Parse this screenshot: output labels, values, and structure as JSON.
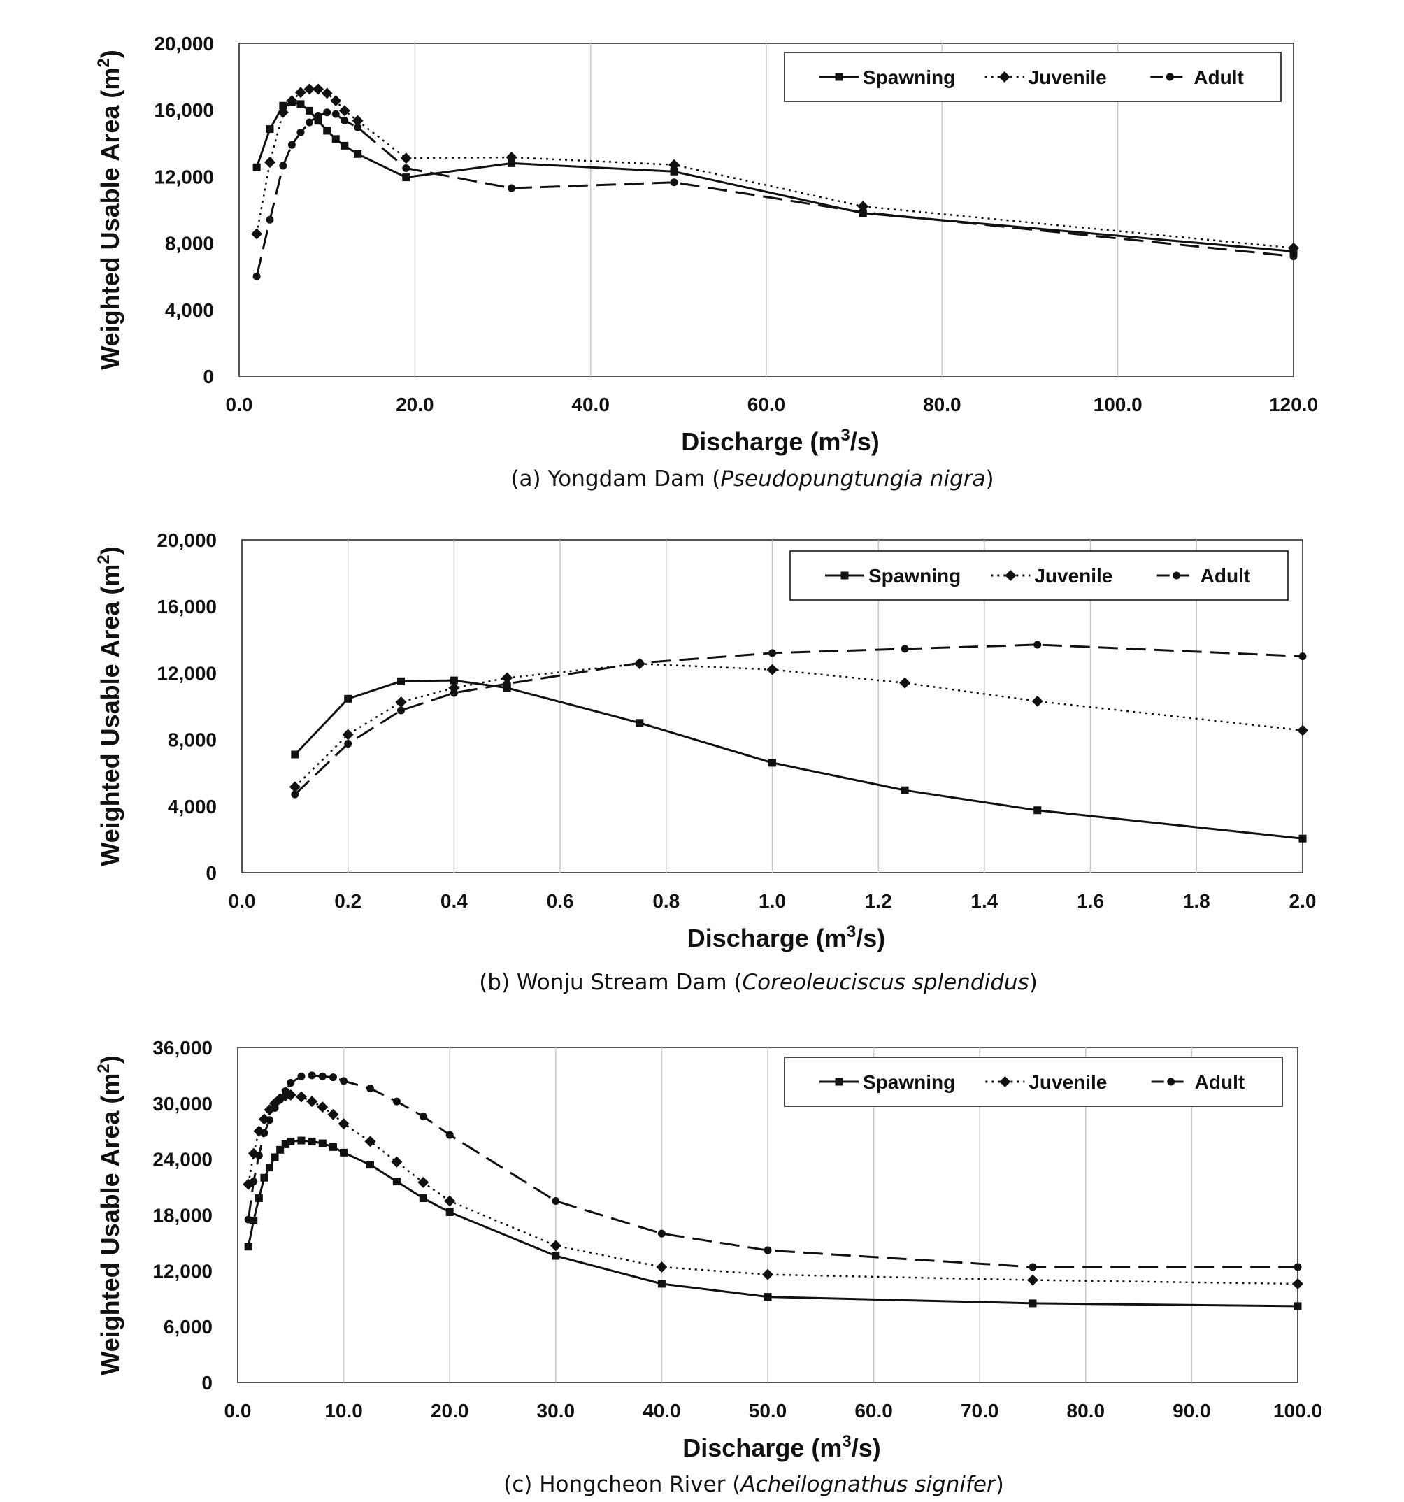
{
  "chart_data": [
    {
      "type": "line",
      "caption_prefix": "(a) Yongdam Dam (",
      "caption_species": "Pseudopungtungia nigra",
      "caption_suffix": ")",
      "xlabel": "Discharge (m3/s)",
      "ylabel": "Weighted Usable Area (m2)",
      "xlim": [
        0,
        120
      ],
      "ylim": [
        0,
        20000
      ],
      "xticks": [
        0,
        20,
        40,
        60,
        80,
        100,
        120
      ],
      "xtick_labels": [
        "0.0",
        "20.0",
        "40.0",
        "60.0",
        "80.0",
        "100.0",
        "120.0"
      ],
      "yticks": [
        0,
        4000,
        8000,
        12000,
        16000,
        20000
      ],
      "ytick_labels": [
        "0",
        "4,000",
        "8,000",
        "12,000",
        "16,000",
        "20,000"
      ],
      "grid": "vertical",
      "legend_position": "top-right",
      "series": [
        {
          "name": "Spawning",
          "marker": "square",
          "dash": "solid",
          "x": [
            2,
            3.5,
            5,
            6,
            7,
            8,
            9,
            10,
            11,
            12,
            13.5,
            19,
            31,
            49.5,
            71,
            120
          ],
          "y": [
            12550,
            14850,
            16250,
            16450,
            16350,
            15950,
            15350,
            14750,
            14250,
            13850,
            13350,
            11950,
            12800,
            12300,
            9800,
            7500
          ]
        },
        {
          "name": "Juvenile",
          "marker": "diamond",
          "dash": "dotted",
          "x": [
            2,
            3.5,
            5,
            6,
            7,
            8,
            9,
            10,
            11,
            12,
            13.5,
            19,
            31,
            49.5,
            71,
            120
          ],
          "y": [
            8550,
            12850,
            15850,
            16550,
            17050,
            17250,
            17250,
            17000,
            16550,
            15950,
            15350,
            13100,
            13150,
            12700,
            10200,
            7700
          ]
        },
        {
          "name": "Adult",
          "marker": "circle",
          "dash": "dashed",
          "x": [
            2,
            3.5,
            5,
            6,
            7,
            8,
            9,
            10,
            11,
            12,
            13.5,
            19,
            31,
            49.5,
            71,
            120
          ],
          "y": [
            6000,
            9400,
            12650,
            13900,
            14650,
            15250,
            15650,
            15850,
            15750,
            15350,
            14950,
            12500,
            11300,
            11650,
            9850,
            7200
          ]
        }
      ]
    },
    {
      "type": "line",
      "caption_prefix": "(b) Wonju Stream Dam (",
      "caption_species": "Coreoleuciscus splendidus",
      "caption_suffix": ")",
      "xlabel": "Discharge (m3/s)",
      "ylabel": "Weighted Usable Area (m2)",
      "xlim": [
        0,
        2
      ],
      "ylim": [
        0,
        20000
      ],
      "xticks": [
        0,
        0.2,
        0.4,
        0.6,
        0.8,
        1.0,
        1.2,
        1.4,
        1.6,
        1.8,
        2.0
      ],
      "xtick_labels": [
        "0.0",
        "0.2",
        "0.4",
        "0.6",
        "0.8",
        "1.0",
        "1.2",
        "1.4",
        "1.6",
        "1.8",
        "2.0"
      ],
      "yticks": [
        0,
        4000,
        8000,
        12000,
        16000,
        20000
      ],
      "ytick_labels": [
        "0",
        "4,000",
        "8,000",
        "12,000",
        "16,000",
        "20,000"
      ],
      "grid": "vertical",
      "legend_position": "top-right",
      "series": [
        {
          "name": "Spawning",
          "marker": "square",
          "dash": "solid",
          "x": [
            0.1,
            0.2,
            0.3,
            0.4,
            0.5,
            0.75,
            1.0,
            1.25,
            1.5,
            2.0
          ],
          "y": [
            7100,
            10450,
            11500,
            11550,
            11100,
            9000,
            6600,
            4950,
            3750,
            2050
          ]
        },
        {
          "name": "Juvenile",
          "marker": "diamond",
          "dash": "dotted",
          "x": [
            0.1,
            0.2,
            0.3,
            0.4,
            0.5,
            0.75,
            1.0,
            1.25,
            1.5,
            2.0
          ],
          "y": [
            5150,
            8300,
            10250,
            11100,
            11700,
            12550,
            12200,
            11400,
            10300,
            8550
          ]
        },
        {
          "name": "Adult",
          "marker": "circle",
          "dash": "dashed",
          "x": [
            0.1,
            0.2,
            0.3,
            0.4,
            0.5,
            0.75,
            1.0,
            1.25,
            1.5,
            2.0
          ],
          "y": [
            4700,
            7750,
            9750,
            10800,
            11350,
            12600,
            13200,
            13450,
            13700,
            13000
          ]
        }
      ]
    },
    {
      "type": "line",
      "caption_prefix": "(c) Hongcheon River (",
      "caption_species": "Acheilognathus signifer",
      "caption_suffix": ")",
      "xlabel": "Discharge (m3/s)",
      "ylabel": "Weighted Usable Area (m2)",
      "xlim": [
        0,
        100
      ],
      "ylim": [
        0,
        36000
      ],
      "xticks": [
        0,
        10,
        20,
        30,
        40,
        50,
        60,
        70,
        80,
        90,
        100
      ],
      "xtick_labels": [
        "0.0",
        "10.0",
        "20.0",
        "30.0",
        "40.0",
        "50.0",
        "60.0",
        "70.0",
        "80.0",
        "90.0",
        "100.0"
      ],
      "yticks": [
        0,
        6000,
        12000,
        18000,
        24000,
        30000,
        36000
      ],
      "ytick_labels": [
        "0",
        "6,000",
        "12,000",
        "18,000",
        "24,000",
        "30,000",
        "36,000"
      ],
      "grid": "vertical",
      "legend_position": "top-right",
      "series": [
        {
          "name": "Spawning",
          "marker": "square",
          "dash": "solid",
          "x": [
            1,
            1.5,
            2,
            2.5,
            3,
            3.5,
            4,
            4.5,
            5,
            6,
            7,
            8,
            9,
            10,
            12.5,
            15,
            17.5,
            20,
            30,
            40,
            50,
            75,
            100
          ],
          "y": [
            14600,
            17400,
            19800,
            22000,
            23100,
            24200,
            25000,
            25600,
            25900,
            26000,
            25900,
            25700,
            25300,
            24700,
            23400,
            21600,
            19800,
            18300,
            13600,
            10600,
            9200,
            8500,
            8200
          ]
        },
        {
          "name": "Juvenile",
          "marker": "diamond",
          "dash": "dotted",
          "x": [
            1,
            1.5,
            2,
            2.5,
            3,
            3.5,
            4,
            4.5,
            5,
            6,
            7,
            8,
            9,
            10,
            12.5,
            15,
            17.5,
            20,
            30,
            40,
            50,
            75,
            100
          ],
          "y": [
            21300,
            24600,
            27000,
            28300,
            29300,
            30000,
            30500,
            30800,
            30900,
            30700,
            30200,
            29600,
            28800,
            27800,
            25900,
            23700,
            21500,
            19500,
            14700,
            12400,
            11600,
            11000,
            10600
          ]
        },
        {
          "name": "Adult",
          "marker": "circle",
          "dash": "dashed",
          "x": [
            1,
            1.5,
            2,
            2.5,
            3,
            3.5,
            4,
            4.5,
            5,
            6,
            7,
            8,
            9,
            10,
            12.5,
            15,
            17.5,
            20,
            30,
            40,
            50,
            75,
            100
          ],
          "y": [
            17500,
            21600,
            24400,
            26800,
            28200,
            29500,
            30400,
            31300,
            32200,
            32900,
            33000,
            32900,
            32800,
            32400,
            31600,
            30200,
            28600,
            26600,
            19500,
            16000,
            14200,
            12400,
            12400
          ]
        }
      ]
    }
  ]
}
